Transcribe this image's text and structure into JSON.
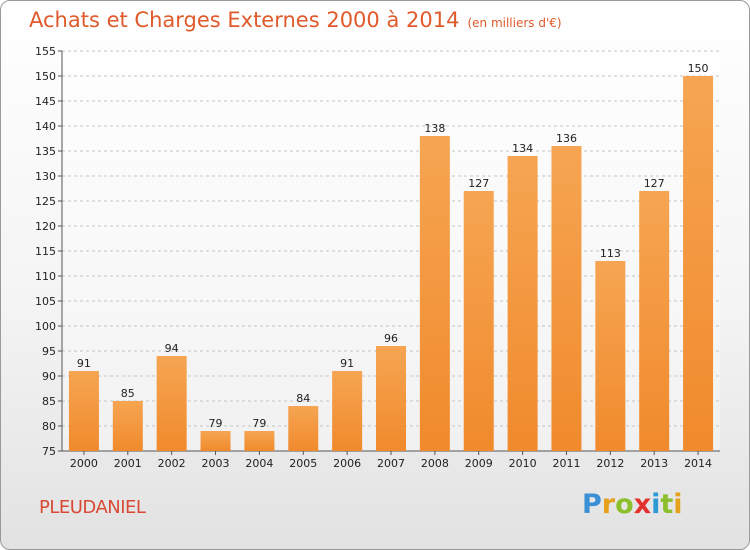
{
  "title": "Achats et Charges Externes 2000 à 2014",
  "unit": "(en milliers d'€)",
  "place": "PLEUDANIEL",
  "logo": {
    "letters": [
      "P",
      "r",
      "o",
      "x",
      "i",
      "t",
      "i"
    ],
    "colors": [
      "#3b8fd4",
      "#e6a11c",
      "#8bbf2c",
      "#e3312d",
      "#2d9ad6",
      "#8bbf2c",
      "#e6a11c"
    ]
  },
  "colors": {
    "bar": "#f08a2c",
    "bar_light": "#f6a552",
    "title": "#e05a2b"
  },
  "chart_data": {
    "type": "bar",
    "categories": [
      "2000",
      "2001",
      "2002",
      "2003",
      "2004",
      "2005",
      "2006",
      "2007",
      "2008",
      "2009",
      "2010",
      "2011",
      "2012",
      "2013",
      "2014"
    ],
    "values": [
      91,
      85,
      94,
      79,
      79,
      84,
      91,
      96,
      138,
      127,
      134,
      136,
      113,
      127,
      150
    ],
    "title": "Achats et Charges Externes 2000 à 2014",
    "xlabel": "",
    "ylabel": "",
    "ylim": [
      75,
      155
    ],
    "yticks": [
      75,
      80,
      85,
      90,
      95,
      100,
      105,
      110,
      115,
      120,
      125,
      130,
      135,
      140,
      145,
      150,
      155
    ],
    "grid": true
  }
}
